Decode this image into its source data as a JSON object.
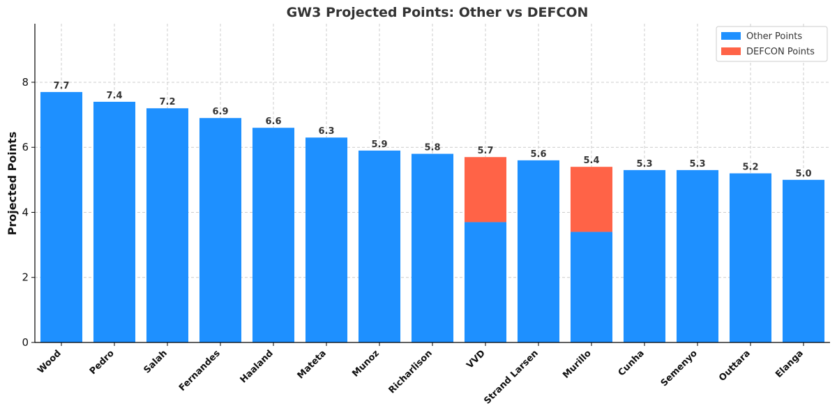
{
  "chart_data": {
    "type": "bar",
    "stacked": true,
    "title": "GW3 Projected Points: Other vs DEFCON",
    "xlabel": "",
    "ylabel": "Projected Points",
    "ylim": [
      0,
      9.8
    ],
    "yticks": [
      0,
      2,
      4,
      6,
      8
    ],
    "grid": true,
    "legend_position": "top-right",
    "categories": [
      "Wood",
      "Pedro",
      "Salah",
      "Fernandes",
      "Haaland",
      "Mateta",
      "Munoz",
      "Richarlison",
      "VVD",
      "Strand Larsen",
      "Murillo",
      "Cunha",
      "Semenyo",
      "Outtara",
      "Elanga"
    ],
    "series": [
      {
        "name": "Other Points",
        "color": "#1e90ff",
        "values": [
          7.7,
          7.4,
          7.2,
          6.9,
          6.6,
          6.3,
          5.9,
          5.8,
          3.7,
          5.6,
          3.4,
          5.3,
          5.3,
          5.2,
          5.0
        ]
      },
      {
        "name": "DEFCON Points",
        "color": "#ff6347",
        "values": [
          0,
          0,
          0,
          0,
          0,
          0,
          0,
          0,
          2.0,
          0,
          2.0,
          0,
          0,
          0,
          0
        ]
      }
    ],
    "totals_labels": [
      "7.7",
      "7.4",
      "7.2",
      "6.9",
      "6.6",
      "6.3",
      "5.9",
      "5.8",
      "5.7",
      "5.6",
      "5.4",
      "5.3",
      "5.3",
      "5.2",
      "5.0"
    ]
  }
}
